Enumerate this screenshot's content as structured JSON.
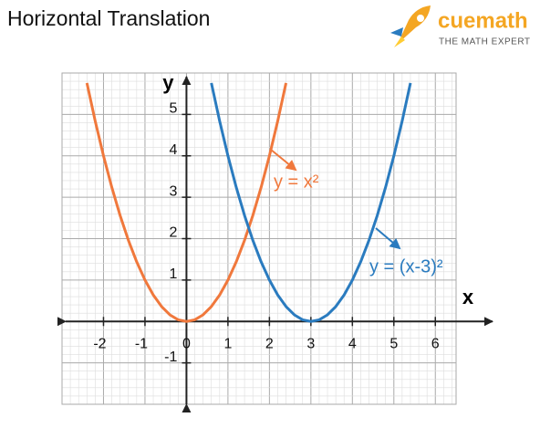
{
  "chart_data": {
    "type": "line",
    "title": "Horizontal Translation",
    "brand": "cuemath",
    "brand_tagline": "THE MATH EXPERT",
    "x_label": "x",
    "y_label": "y",
    "xlim": [
      -3,
      6.5
    ],
    "ylim": [
      -2,
      6
    ],
    "xticks": [
      -2,
      -1,
      0,
      1,
      2,
      3,
      4,
      5,
      6
    ],
    "yticks": [
      -1,
      1,
      2,
      3,
      4,
      5
    ],
    "grid": true,
    "series": [
      {
        "name": "y = x²",
        "color": "#f0783c",
        "x": [
          -2.4,
          -2.2,
          -2,
          -1.8,
          -1.6,
          -1.4,
          -1.2,
          -1,
          -0.8,
          -0.6,
          -0.4,
          -0.2,
          0,
          0.2,
          0.4,
          0.6,
          0.8,
          1,
          1.2,
          1.4,
          1.6,
          1.8,
          2,
          2.2,
          2.4
        ],
        "values": [
          5.76,
          4.84,
          4,
          3.24,
          2.56,
          1.96,
          1.44,
          1,
          0.64,
          0.36,
          0.16,
          0.04,
          0,
          0.04,
          0.16,
          0.36,
          0.64,
          1,
          1.44,
          1.96,
          2.56,
          3.24,
          4,
          4.84,
          5.76
        ]
      },
      {
        "name": "y = (x-3)²",
        "color": "#2a7bbf",
        "x": [
          0.6,
          0.8,
          1,
          1.2,
          1.4,
          1.6,
          1.8,
          2,
          2.2,
          2.4,
          2.6,
          2.8,
          3,
          3.2,
          3.4,
          3.6,
          3.8,
          4,
          4.2,
          4.4,
          4.6,
          4.8,
          5,
          5.2,
          5.4
        ],
        "values": [
          5.76,
          4.84,
          4,
          3.24,
          2.56,
          1.96,
          1.44,
          1,
          0.64,
          0.36,
          0.16,
          0.04,
          0,
          0.04,
          0.16,
          0.36,
          0.64,
          1,
          1.44,
          1.96,
          2.56,
          3.24,
          4,
          4.84,
          5.76
        ]
      }
    ]
  }
}
